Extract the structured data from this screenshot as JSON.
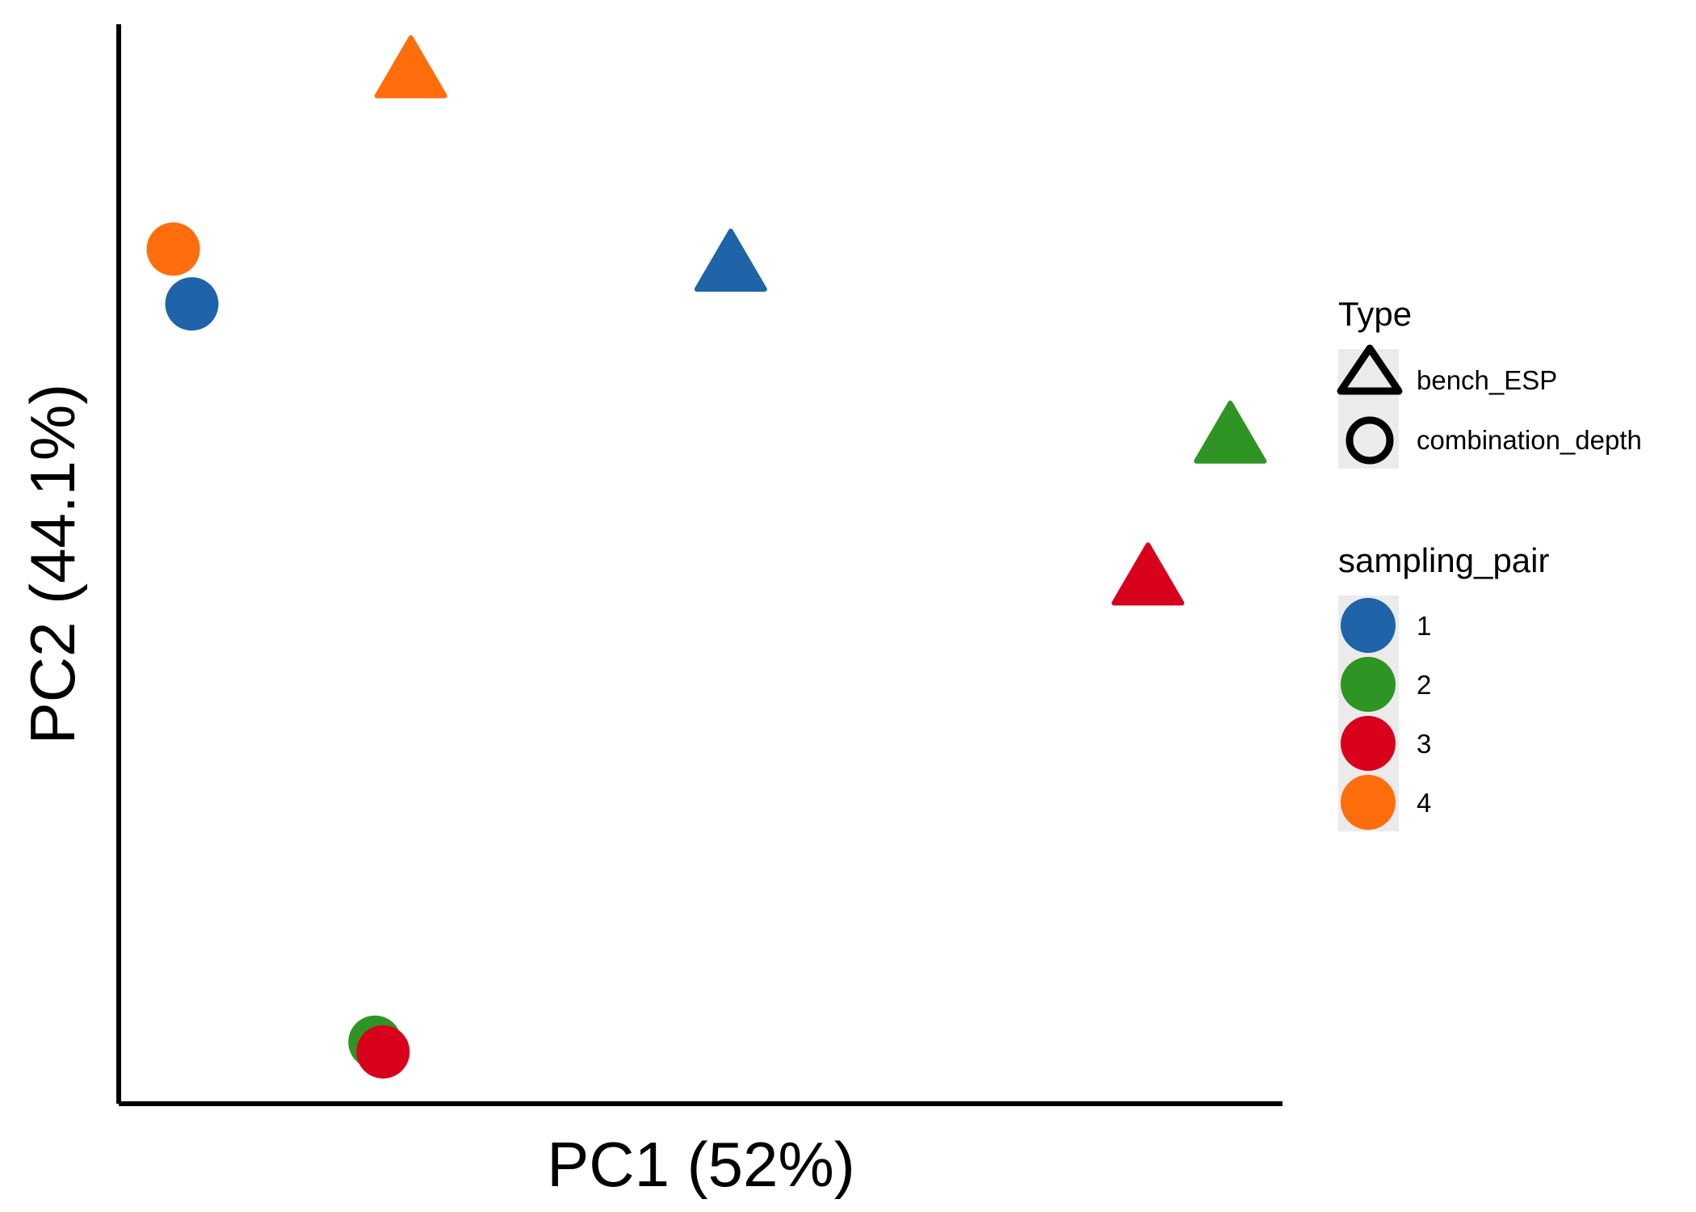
{
  "chart_data": {
    "type": "scatter",
    "xlabel": "PC1 (52%)",
    "ylabel": "PC2 (44.1%)",
    "xlim": [
      0,
      1
    ],
    "ylim": [
      0,
      1
    ],
    "grid": false,
    "legend_position": "right",
    "colors": {
      "1": "#1f63a8",
      "2": "#2e9423",
      "3": "#d9001b",
      "4": "#ff6d0c"
    },
    "points": [
      {
        "sampling_pair": "4",
        "type": "bench_ESP",
        "x": 0.25,
        "y": 0.96
      },
      {
        "sampling_pair": "1",
        "type": "bench_ESP",
        "x": 0.526,
        "y": 0.78
      },
      {
        "sampling_pair": "2",
        "type": "bench_ESP",
        "x": 0.957,
        "y": 0.62
      },
      {
        "sampling_pair": "3",
        "type": "bench_ESP",
        "x": 0.886,
        "y": 0.488
      },
      {
        "sampling_pair": "4",
        "type": "combination_depth",
        "x": 0.045,
        "y": 0.793
      },
      {
        "sampling_pair": "1",
        "type": "combination_depth",
        "x": 0.061,
        "y": 0.742
      },
      {
        "sampling_pair": "2",
        "type": "combination_depth",
        "x": 0.219,
        "y": 0.055
      },
      {
        "sampling_pair": "3",
        "type": "combination_depth",
        "x": 0.226,
        "y": 0.046
      }
    ]
  },
  "legend": {
    "type": {
      "title": "Type",
      "items": [
        {
          "label": "bench_ESP",
          "shape": "triangle"
        },
        {
          "label": "combination_depth",
          "shape": "circle"
        }
      ]
    },
    "sampling_pair": {
      "title": "sampling_pair",
      "items": [
        {
          "label": "1",
          "color": "#1f63a8"
        },
        {
          "label": "2",
          "color": "#2e9423"
        },
        {
          "label": "3",
          "color": "#d9001b"
        },
        {
          "label": "4",
          "color": "#ff6d0c"
        }
      ]
    }
  }
}
